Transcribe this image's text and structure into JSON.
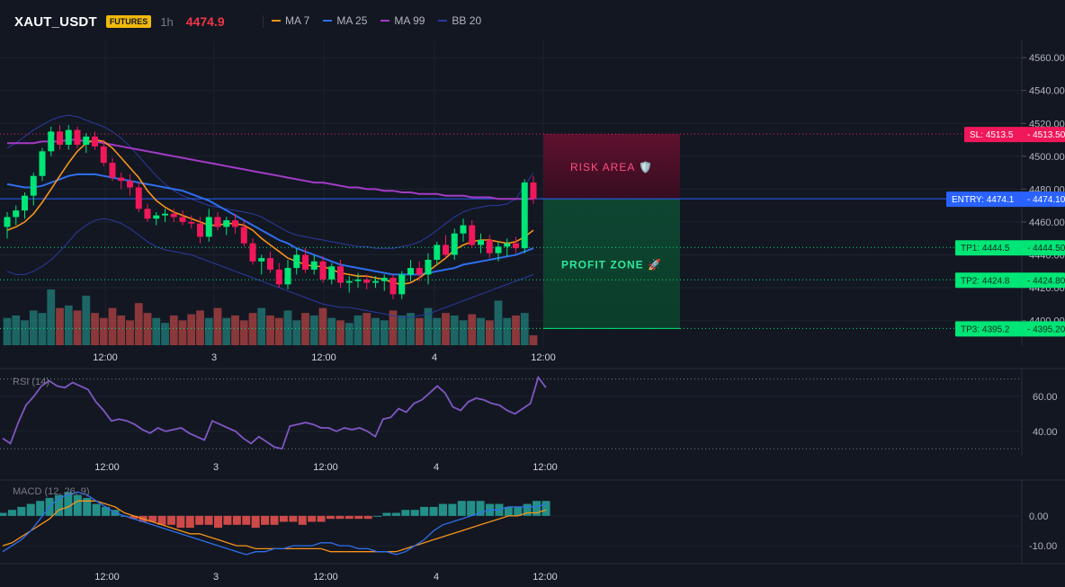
{
  "header": {
    "symbol": "XAUT_USDT",
    "badge": "FUTURES",
    "timeframe": "1h",
    "last_price": "4474.9"
  },
  "legend": [
    {
      "label": "MA 7",
      "color": "#f7931a"
    },
    {
      "label": "MA 25",
      "color": "#2f6fed"
    },
    {
      "label": "MA 99",
      "color": "#a33bc6"
    },
    {
      "label": "BB 20",
      "color": "#2a3aa0"
    }
  ],
  "colors": {
    "up": "#00e676",
    "down": "#f0185a",
    "background": "#131722",
    "grid": "#1e222d",
    "entry": "#2962ff",
    "sl": "#f0185a",
    "tp": "#00e676",
    "rsi": "#7e57c2"
  },
  "chart_data": [
    {
      "name": "price",
      "type": "candlestick",
      "ylim": [
        4385,
        4565
      ],
      "y_ticks": [
        "4560.00",
        "4540.00",
        "4520.00",
        "4500.00",
        "4480.00",
        "4460.00",
        "4440.00",
        "4420.00",
        "4400.00"
      ],
      "x_ticks": [
        "12:00",
        "3",
        "12:00",
        "4",
        "12:00"
      ],
      "candles": [
        [
          4457,
          4466,
          4450,
          4463
        ],
        [
          4463,
          4470,
          4458,
          4467
        ],
        [
          4467,
          4478,
          4462,
          4476
        ],
        [
          4476,
          4490,
          4470,
          4488
        ],
        [
          4488,
          4505,
          4485,
          4503
        ],
        [
          4503,
          4518,
          4500,
          4515
        ],
        [
          4515,
          4519,
          4504,
          4507
        ],
        [
          4507,
          4519,
          4504,
          4516
        ],
        [
          4516,
          4518,
          4505,
          4507
        ],
        [
          4507,
          4514,
          4502,
          4512
        ],
        [
          4512,
          4515,
          4504,
          4506
        ],
        [
          4506,
          4510,
          4494,
          4496
        ],
        [
          4496,
          4499,
          4485,
          4487
        ],
        [
          4487,
          4490,
          4480,
          4485
        ],
        [
          4485,
          4489,
          4476,
          4481
        ],
        [
          4481,
          4484,
          4466,
          4468
        ],
        [
          4468,
          4471,
          4460,
          4462
        ],
        [
          4462,
          4466,
          4458,
          4464
        ],
        [
          4464,
          4468,
          4460,
          4465
        ],
        [
          4465,
          4468,
          4460,
          4463
        ],
        [
          4463,
          4467,
          4458,
          4460
        ],
        [
          4460,
          4464,
          4456,
          4459
        ],
        [
          4459,
          4463,
          4447,
          4451
        ],
        [
          4451,
          4468,
          4448,
          4463
        ],
        [
          4463,
          4466,
          4455,
          4457
        ],
        [
          4457,
          4463,
          4452,
          4461
        ],
        [
          4461,
          4465,
          4453,
          4457
        ],
        [
          4457,
          4461,
          4445,
          4447
        ],
        [
          4447,
          4450,
          4434,
          4436
        ],
        [
          4436,
          4440,
          4428,
          4438
        ],
        [
          4438,
          4442,
          4429,
          4431
        ],
        [
          4431,
          4435,
          4420,
          4422
        ],
        [
          4422,
          4437,
          4419,
          4432
        ],
        [
          4432,
          4444,
          4428,
          4440
        ],
        [
          4440,
          4444,
          4429,
          4431
        ],
        [
          4431,
          4440,
          4428,
          4436
        ],
        [
          4436,
          4439,
          4423,
          4425
        ],
        [
          4425,
          4435,
          4422,
          4433
        ],
        [
          4433,
          4437,
          4420,
          4423
        ],
        [
          4423,
          4427,
          4417,
          4424
        ],
        [
          4424,
          4429,
          4420,
          4425
        ],
        [
          4425,
          4428,
          4419,
          4423
        ],
        [
          4423,
          4427,
          4420,
          4424
        ],
        [
          4424,
          4428,
          4418,
          4426
        ],
        [
          4426,
          4428,
          4413,
          4416
        ],
        [
          4416,
          4430,
          4413,
          4428
        ],
        [
          4428,
          4437,
          4424,
          4432
        ],
        [
          4432,
          4436,
          4424,
          4428
        ],
        [
          4428,
          4441,
          4422,
          4437
        ],
        [
          4437,
          4448,
          4434,
          4446
        ],
        [
          4446,
          4452,
          4438,
          4440
        ],
        [
          4440,
          4456,
          4437,
          4453
        ],
        [
          4453,
          4462,
          4448,
          4458
        ],
        [
          4458,
          4461,
          4444,
          4446
        ],
        [
          4446,
          4453,
          4441,
          4449
        ],
        [
          4449,
          4452,
          4438,
          4441
        ],
        [
          4441,
          4448,
          4436,
          4445
        ],
        [
          4445,
          4450,
          4439,
          4447
        ],
        [
          4447,
          4451,
          4441,
          4444
        ],
        [
          4444,
          4486,
          4441,
          4484
        ],
        [
          4484,
          4488,
          4471,
          4474
        ]
      ],
      "ma7": [
        4455,
        4457,
        4460,
        4465,
        4472,
        4480,
        4488,
        4496,
        4503,
        4508,
        4510,
        4509,
        4505,
        4499,
        4493,
        4487,
        4479,
        4473,
        4469,
        4466,
        4464,
        4462,
        4460,
        4458,
        4458,
        4459,
        4459,
        4458,
        4455,
        4450,
        4446,
        4442,
        4438,
        4436,
        4434,
        4433,
        4433,
        4431,
        4429,
        4428,
        4427,
        4427,
        4426,
        4425,
        4423,
        4422,
        4423,
        4426,
        4430,
        4434,
        4438,
        4443,
        4446,
        4448,
        4449,
        4449,
        4448,
        4447,
        4448,
        4451,
        4455
      ],
      "ma25": [
        4483,
        4482,
        4481,
        4481,
        4482,
        4484,
        4486,
        4488,
        4489,
        4489,
        4489,
        4488,
        4487,
        4486,
        4485,
        4484,
        4483,
        4482,
        4481,
        4480,
        4479,
        4477,
        4475,
        4473,
        4470,
        4467,
        4464,
        4461,
        4458,
        4455,
        4452,
        4449,
        4447,
        4444,
        4442,
        4440,
        4438,
        4436,
        4434,
        4433,
        4432,
        4431,
        4430,
        4429,
        4428,
        4428,
        4428,
        4428,
        4429,
        4430,
        4431,
        4432,
        4434,
        4435,
        4436,
        4437,
        4438,
        4439,
        4440,
        4442,
        4444
      ],
      "ma99": [
        4508,
        4508,
        4508,
        4508,
        4509,
        4509,
        4509,
        4510,
        4510,
        4509,
        4509,
        4508,
        4507,
        4506,
        4505,
        4504,
        4503,
        4502,
        4501,
        4500,
        4499,
        4498,
        4497,
        4496,
        4495,
        4494,
        4493,
        4492,
        4491,
        4490,
        4489,
        4488,
        4487,
        4486,
        4485,
        4484,
        4484,
        4483,
        4482,
        4481,
        4481,
        4480,
        4480,
        4479,
        4479,
        4478,
        4478,
        4477,
        4477,
        4477,
        4476,
        4476,
        4476,
        4475,
        4475,
        4475,
        4474,
        4474,
        4474,
        4474,
        4474
      ],
      "bb_upper": [
        4505,
        4508,
        4512,
        4516,
        4519,
        4522,
        4524,
        4525,
        4524,
        4522,
        4520,
        4518,
        4515,
        4511,
        4506,
        4500,
        4494,
        4488,
        4483,
        4479,
        4476,
        4474,
        4472,
        4470,
        4469,
        4468,
        4467,
        4466,
        4465,
        4463,
        4460,
        4457,
        4454,
        4452,
        4451,
        4450,
        4449,
        4448,
        4447,
        4446,
        4445,
        4445,
        4444,
        4444,
        4444,
        4445,
        4446,
        4448,
        4451,
        4455,
        4459,
        4463,
        4466,
        4468,
        4469,
        4470,
        4470,
        4471,
        4474,
        4482,
        4490
      ],
      "bb_lower": [
        4430,
        4428,
        4428,
        4430,
        4433,
        4437,
        4442,
        4448,
        4454,
        4458,
        4461,
        4462,
        4461,
        4459,
        4456,
        4452,
        4448,
        4445,
        4443,
        4442,
        4441,
        4440,
        4438,
        4436,
        4434,
        4432,
        4430,
        4428,
        4426,
        4424,
        4422,
        4420,
        4418,
        4416,
        4414,
        4412,
        4410,
        4409,
        4408,
        4408,
        4407,
        4406,
        4405,
        4404,
        4403,
        4402,
        4402,
        4403,
        4404,
        4406,
        4408,
        4410,
        4412,
        4414,
        4416,
        4418,
        4420,
        4422,
        4424,
        4426,
        4428
      ],
      "volume": [
        22,
        24,
        20,
        28,
        26,
        45,
        30,
        32,
        28,
        40,
        26,
        22,
        30,
        24,
        20,
        34,
        26,
        22,
        18,
        24,
        20,
        25,
        28,
        22,
        30,
        22,
        24,
        20,
        26,
        30,
        24,
        22,
        28,
        20,
        26,
        24,
        30,
        22,
        20,
        18,
        24,
        26,
        22,
        20,
        28,
        24,
        26,
        22,
        30,
        22,
        26,
        24,
        20,
        25,
        22,
        20,
        36,
        22,
        24,
        26,
        8
      ],
      "levels": [
        {
          "label": "SL: 4513.5",
          "value_label": "4513.50",
          "price": 4513.5,
          "kind": "sl"
        },
        {
          "label": "ENTRY: 4474.1",
          "value_label": "4474.10",
          "price": 4474.1,
          "kind": "entry"
        },
        {
          "label": "TP1: 4444.5",
          "value_label": "4444.50",
          "price": 4444.5,
          "kind": "tp"
        },
        {
          "label": "TP2: 4424.8",
          "value_label": "4424.80",
          "price": 4424.8,
          "kind": "tp"
        },
        {
          "label": "TP3: 4395.2",
          "value_label": "4395.20",
          "price": 4395.2,
          "kind": "tp"
        }
      ],
      "zones": {
        "risk_label": "RISK AREA 🛡️",
        "profit_label": "PROFIT ZONE 🚀"
      }
    },
    {
      "name": "rsi",
      "type": "line",
      "label": "RSI (14)",
      "ylim": [
        26,
        76
      ],
      "y_ticks": [
        "60.00",
        "40.00"
      ],
      "bands": [
        70,
        30
      ],
      "x_ticks": [
        "12:00",
        "3",
        "12:00",
        "4",
        "12:00"
      ],
      "values": [
        36,
        33,
        45,
        55,
        60,
        66,
        69,
        66,
        65,
        68,
        66,
        64,
        57,
        52,
        46,
        47,
        46,
        44,
        41,
        39,
        42,
        40,
        41,
        42,
        39,
        37,
        35,
        46,
        44,
        42,
        40,
        36,
        33,
        37,
        34,
        31,
        30,
        43,
        44,
        45,
        44,
        42,
        42,
        40,
        42,
        41,
        42,
        40,
        37,
        47,
        48,
        53,
        51,
        56,
        58,
        62,
        66,
        62,
        54,
        52,
        57,
        59,
        58,
        56,
        55,
        52,
        50,
        53,
        56,
        71,
        65
      ]
    },
    {
      "name": "macd",
      "type": "histogram+line",
      "label": "MACD (12, 26, 9)",
      "ylim": [
        -16,
        12
      ],
      "y_ticks": [
        "0.00",
        "-10.00"
      ],
      "x_ticks": [
        "12:00",
        "3",
        "12:00",
        "4",
        "12:00"
      ],
      "histogram": [
        1,
        2,
        3,
        4,
        5,
        6,
        7,
        8,
        7,
        6,
        4,
        3,
        2,
        0,
        -1,
        -2,
        -2,
        -3,
        -3,
        -4,
        -4,
        -3,
        -3,
        -4,
        -3,
        -3,
        -3,
        -4,
        -3,
        -3,
        -2,
        -2,
        -3,
        -2,
        -2,
        -1,
        -1,
        -1,
        -1,
        -1,
        0,
        1,
        1,
        2,
        2,
        3,
        3,
        4,
        4,
        5,
        5,
        5,
        4,
        4,
        3,
        3,
        4,
        5,
        5
      ],
      "macd": [
        -12,
        -10,
        -8,
        -5,
        -1,
        3,
        6,
        7,
        8,
        7,
        5,
        3,
        1,
        0,
        -1,
        -2,
        -3,
        -4,
        -5,
        -6,
        -7,
        -8,
        -9,
        -10,
        -11,
        -12,
        -13,
        -12,
        -12,
        -11,
        -11,
        -10,
        -10,
        -10,
        -9,
        -9,
        -10,
        -10,
        -11,
        -11,
        -12,
        -12,
        -13,
        -12,
        -10,
        -8,
        -5,
        -3,
        -2,
        -1,
        0,
        1,
        2,
        2,
        3,
        3,
        3,
        3,
        4
      ],
      "signal": [
        -10,
        -9,
        -7,
        -5,
        -3,
        -1,
        2,
        3,
        5,
        5,
        5,
        4,
        3,
        1,
        0,
        -1,
        -2,
        -3,
        -4,
        -5,
        -6,
        -6,
        -7,
        -8,
        -9,
        -10,
        -10,
        -11,
        -11,
        -11,
        -11,
        -11,
        -11,
        -11,
        -11,
        -12,
        -12,
        -12,
        -12,
        -12,
        -12,
        -12,
        -12,
        -11,
        -10,
        -9,
        -8,
        -7,
        -6,
        -5,
        -4,
        -3,
        -2,
        -1,
        0,
        0,
        1,
        1,
        2
      ]
    }
  ]
}
